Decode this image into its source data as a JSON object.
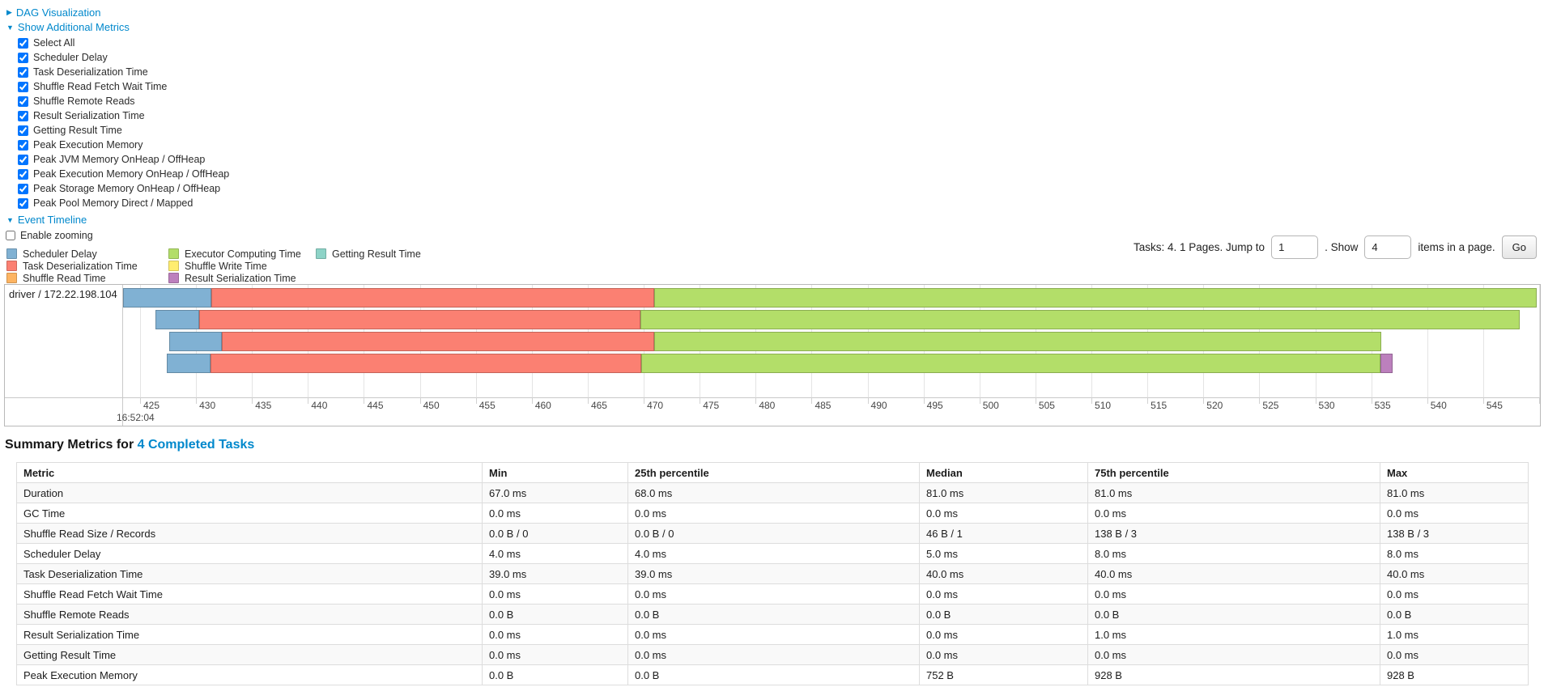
{
  "panel": {
    "dag_link": "DAG Visualization",
    "metrics_link": "Show Additional Metrics",
    "timeline_link": "Event Timeline",
    "enable_zooming_label": "Enable zooming",
    "enable_zooming_checked": false,
    "metric_checkboxes": [
      {
        "label": "Select All",
        "checked": true
      },
      {
        "label": "Scheduler Delay",
        "checked": true
      },
      {
        "label": "Task Deserialization Time",
        "checked": true
      },
      {
        "label": "Shuffle Read Fetch Wait Time",
        "checked": true
      },
      {
        "label": "Shuffle Remote Reads",
        "checked": true
      },
      {
        "label": "Result Serialization Time",
        "checked": true
      },
      {
        "label": "Getting Result Time",
        "checked": true
      },
      {
        "label": "Peak Execution Memory",
        "checked": true
      },
      {
        "label": "Peak JVM Memory OnHeap / OffHeap",
        "checked": true
      },
      {
        "label": "Peak Execution Memory OnHeap / OffHeap",
        "checked": true
      },
      {
        "label": "Peak Storage Memory OnHeap / OffHeap",
        "checked": true
      },
      {
        "label": "Peak Pool Memory Direct / Mapped",
        "checked": true
      }
    ]
  },
  "pagination": {
    "tasks_label": "Tasks: 4. 1 Pages. Jump to",
    "jump_value": "1",
    "show_label": ". Show",
    "show_value": "4",
    "suffix_label": "items in a page.",
    "go_label": "Go"
  },
  "legend": {
    "columns": [
      [
        {
          "key": "scheduler_delay",
          "label": "Scheduler Delay"
        },
        {
          "key": "task_deserialization",
          "label": "Task Deserialization Time"
        },
        {
          "key": "shuffle_read",
          "label": "Shuffle Read Time"
        }
      ],
      [
        {
          "key": "executor_computing",
          "label": "Executor Computing Time"
        },
        {
          "key": "shuffle_write",
          "label": "Shuffle Write Time"
        },
        {
          "key": "result_serialization",
          "label": "Result Serialization Time"
        }
      ],
      [
        {
          "key": "getting_result",
          "label": "Getting Result Time"
        }
      ]
    ]
  },
  "chart_data": {
    "type": "timeline",
    "title": "Event Timeline",
    "group_label": "driver / 172.22.198.104",
    "axis": {
      "min": 425,
      "max": 550,
      "step": 5,
      "unit": "ms",
      "major_label": "16:52:04"
    },
    "colors": {
      "scheduler_delay": "#80B1D3",
      "task_deserialization": "#FB8072",
      "shuffle_read": "#FDB462",
      "executor_computing": "#B3DE69",
      "shuffle_write": "#FFED6F",
      "result_serialization": "#BC80BD",
      "getting_result": "#8DD3C7"
    },
    "tasks": [
      {
        "segments": [
          {
            "name": "scheduler_delay",
            "start": 423.5,
            "end": 431.4
          },
          {
            "name": "task_deserialization",
            "start": 431.4,
            "end": 470.9
          },
          {
            "name": "executor_computing",
            "start": 470.9,
            "end": 549.8
          }
        ]
      },
      {
        "segments": [
          {
            "name": "scheduler_delay",
            "start": 426.4,
            "end": 430.3
          },
          {
            "name": "task_deserialization",
            "start": 430.3,
            "end": 469.7
          },
          {
            "name": "executor_computing",
            "start": 469.7,
            "end": 548.3
          }
        ]
      },
      {
        "segments": [
          {
            "name": "scheduler_delay",
            "start": 427.6,
            "end": 432.3
          },
          {
            "name": "task_deserialization",
            "start": 432.3,
            "end": 470.9
          },
          {
            "name": "executor_computing",
            "start": 470.9,
            "end": 535.9
          }
        ]
      },
      {
        "segments": [
          {
            "name": "scheduler_delay",
            "start": 427.4,
            "end": 431.3
          },
          {
            "name": "task_deserialization",
            "start": 431.3,
            "end": 469.8
          },
          {
            "name": "executor_computing",
            "start": 469.8,
            "end": 535.8
          },
          {
            "name": "result_serialization",
            "start": 535.8,
            "end": 536.9
          }
        ]
      }
    ]
  },
  "summary": {
    "title_prefix": "Summary Metrics for",
    "completed_link": "4 Completed Tasks",
    "table": {
      "headers": [
        "Metric",
        "Min",
        "25th percentile",
        "Median",
        "75th percentile",
        "Max"
      ],
      "rows": [
        [
          "Duration",
          "67.0 ms",
          "68.0 ms",
          "81.0 ms",
          "81.0 ms",
          "81.0 ms"
        ],
        [
          "GC Time",
          "0.0 ms",
          "0.0 ms",
          "0.0 ms",
          "0.0 ms",
          "0.0 ms"
        ],
        [
          "Shuffle Read Size / Records",
          "0.0 B / 0",
          "0.0 B / 0",
          "46 B / 1",
          "138 B / 3",
          "138 B / 3"
        ],
        [
          "Scheduler Delay",
          "4.0 ms",
          "4.0 ms",
          "5.0 ms",
          "8.0 ms",
          "8.0 ms"
        ],
        [
          "Task Deserialization Time",
          "39.0 ms",
          "39.0 ms",
          "40.0 ms",
          "40.0 ms",
          "40.0 ms"
        ],
        [
          "Shuffle Read Fetch Wait Time",
          "0.0 ms",
          "0.0 ms",
          "0.0 ms",
          "0.0 ms",
          "0.0 ms"
        ],
        [
          "Shuffle Remote Reads",
          "0.0 B",
          "0.0 B",
          "0.0 B",
          "0.0 B",
          "0.0 B"
        ],
        [
          "Result Serialization Time",
          "0.0 ms",
          "0.0 ms",
          "0.0 ms",
          "1.0 ms",
          "1.0 ms"
        ],
        [
          "Getting Result Time",
          "0.0 ms",
          "0.0 ms",
          "0.0 ms",
          "0.0 ms",
          "0.0 ms"
        ],
        [
          "Peak Execution Memory",
          "0.0 B",
          "0.0 B",
          "752 B",
          "928 B",
          "928 B"
        ]
      ]
    }
  }
}
